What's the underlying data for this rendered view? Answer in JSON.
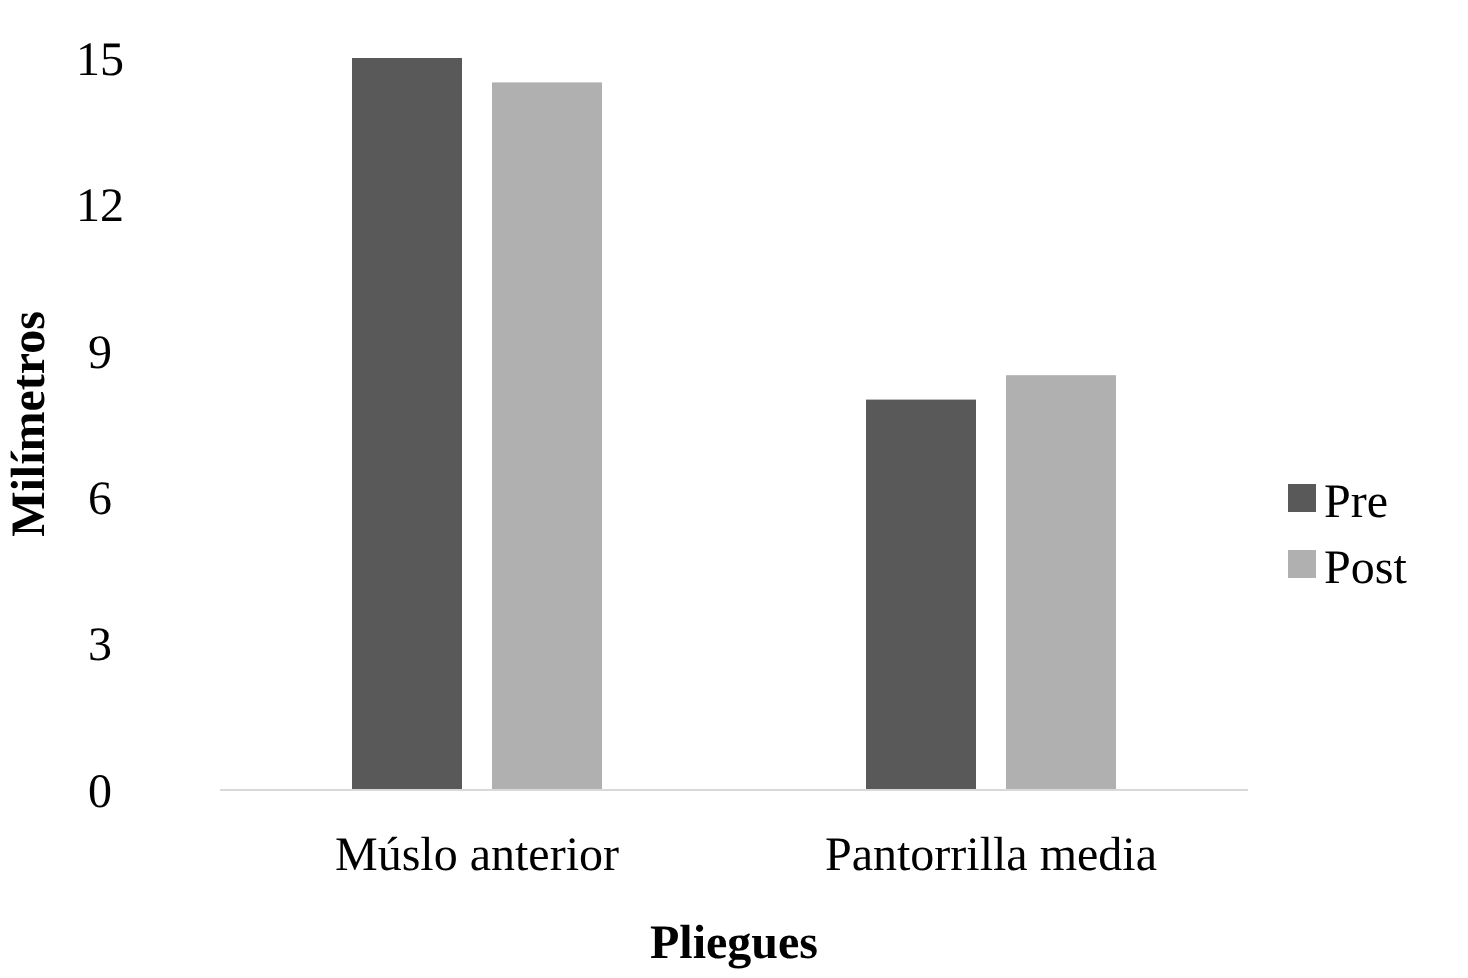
{
  "chart_data": {
    "type": "bar",
    "xlabel": "Pliegues",
    "ylabel": "Milímetros",
    "categories": [
      "Múslo anterior",
      "Pantorrilla media"
    ],
    "series": [
      {
        "name": "Pre",
        "color": "#595959",
        "values": [
          15,
          8
        ]
      },
      {
        "name": "Post",
        "color": "#b0b0b0",
        "values": [
          14.5,
          8.5
        ]
      }
    ],
    "ylim": [
      0,
      15
    ],
    "yticks": [
      0,
      3,
      6,
      9,
      12,
      15
    ],
    "legend": "right",
    "grid": false
  }
}
